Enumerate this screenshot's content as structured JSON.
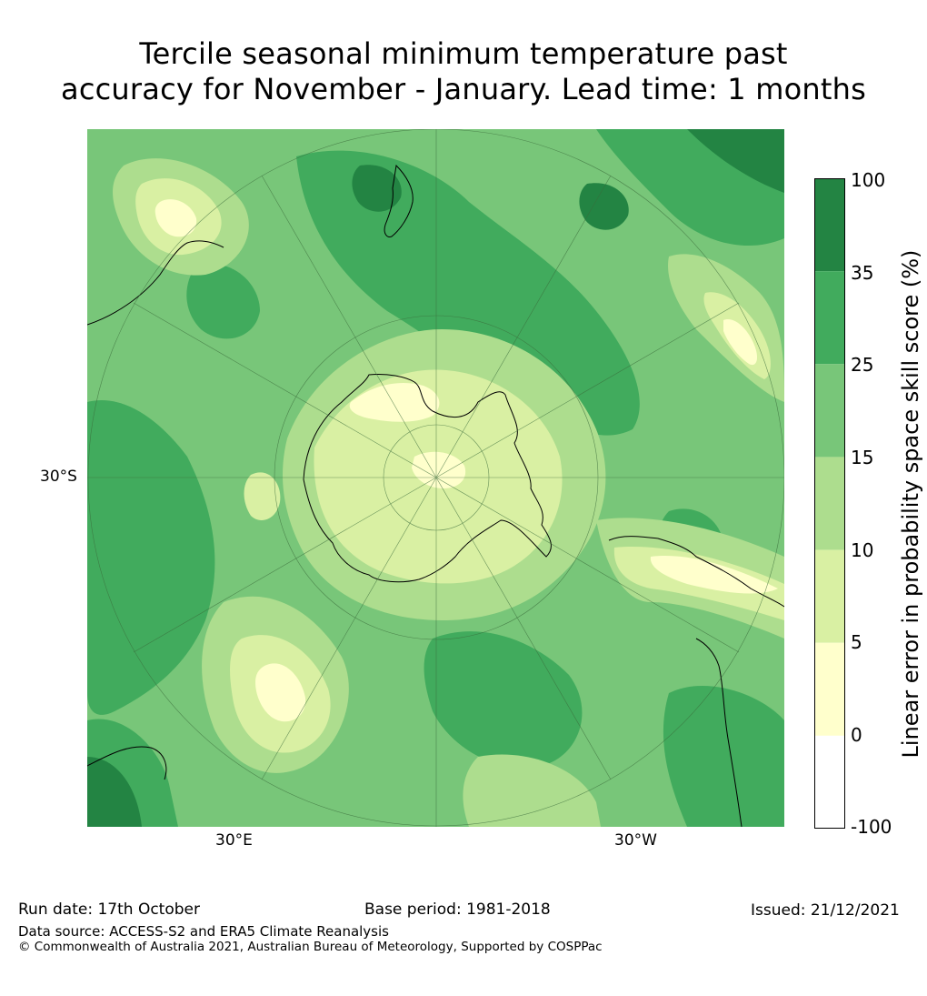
{
  "title": {
    "line1": "Tercile seasonal minimum temperature past",
    "line2": "accuracy for November - January. Lead time: 1 months"
  },
  "map": {
    "projection": "south-polar",
    "lat_label": "30°S",
    "lon_labels": [
      "30°E",
      "30°W"
    ]
  },
  "colorbar": {
    "label": "Linear error in probability space skill score (%)",
    "ticks": [
      "100",
      "35",
      "25",
      "15",
      "10",
      "5",
      "0",
      "-100"
    ],
    "bins": [
      {
        "range": "35 to 100",
        "color": "#238443"
      },
      {
        "range": "25 to 35",
        "color": "#41ab5d"
      },
      {
        "range": "15 to 25",
        "color": "#78c679"
      },
      {
        "range": "10 to 15",
        "color": "#addd8e"
      },
      {
        "range": "5 to 10",
        "color": "#d9f0a3"
      },
      {
        "range": "0 to 5",
        "color": "#ffffcc"
      },
      {
        "range": "-100 to 0",
        "color": "#ffffff"
      }
    ]
  },
  "footer": {
    "run_date": "Run date: 17th October",
    "base_period": "Base period: 1981-2018",
    "issued": "Issued: 21/12/2021",
    "data_source": "Data source: ACCESS-S2 and ERA5 Climate Reanalysis",
    "copyright": "© Commonwealth of Australia 2021, Australian Bureau of Meteorology, Supported by COSPPac"
  }
}
